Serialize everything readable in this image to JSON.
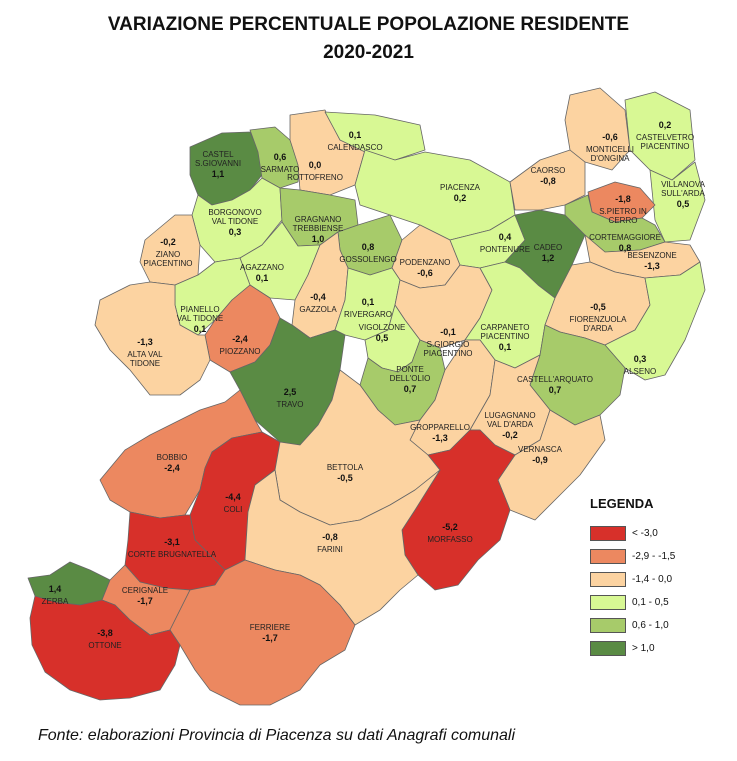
{
  "title_line1": "VARIAZIONE PERCENTUALE POPOLAZIONE RESIDENTE",
  "title_line2": "2020-2021",
  "source": "Fonte: elaborazioni Provincia di Piacenza su dati Anagrafi comunali",
  "colors": {
    "c1": "#d7302a",
    "c2": "#ec8860",
    "c3": "#fcd3a1",
    "c4": "#d8f894",
    "c5": "#a7cb6a",
    "c6": "#5a8b44"
  },
  "legend": {
    "title": "LEGENDA",
    "items": [
      {
        "label": "< -3,0",
        "cls": "c1"
      },
      {
        "label": "-2,9 - -1,5",
        "cls": "c2"
      },
      {
        "label": "-1,4 - 0,0",
        "cls": "c3"
      },
      {
        "label": "0,1 - 0,5",
        "cls": "c4"
      },
      {
        "label": "0,6 - 1,0",
        "cls": "c5"
      },
      {
        "label": "> 1,0",
        "cls": "c6"
      }
    ]
  },
  "comuni": [
    {
      "id": "castel-san-giovanni",
      "name": [
        "CASTEL",
        "S.GIOVANNI"
      ],
      "value": "1,1",
      "value_num": 1.1,
      "cls": "c6"
    },
    {
      "id": "sarmato",
      "name": [
        "SARMATO"
      ],
      "value": "0,6",
      "value_num": 0.6,
      "cls": "c5"
    },
    {
      "id": "rottofreno",
      "name": [
        "ROTTOFRENO"
      ],
      "value": "0,0",
      "value_num": 0.0,
      "cls": "c3"
    },
    {
      "id": "calendasco",
      "name": [
        "CALENDASCO"
      ],
      "value": "0,1",
      "value_num": 0.1,
      "cls": "c4"
    },
    {
      "id": "piacenza",
      "name": [
        "PIACENZA"
      ],
      "value": "0,2",
      "value_num": 0.2,
      "cls": "c4"
    },
    {
      "id": "caorso",
      "name": [
        "CAORSO"
      ],
      "value": "-0,8",
      "value_num": -0.8,
      "cls": "c3"
    },
    {
      "id": "monticelli",
      "name": [
        "MONTICELLI",
        "D'ONGINA"
      ],
      "value": "-0,6",
      "value_num": -0.6,
      "cls": "c3"
    },
    {
      "id": "castelvetro",
      "name": [
        "CASTELVETRO",
        "PIACENTINO"
      ],
      "value": "0,2",
      "value_num": 0.2,
      "cls": "c4"
    },
    {
      "id": "villanova",
      "name": [
        "VILLANOVA",
        "SULL'ARDA"
      ],
      "value": "0,5",
      "value_num": 0.5,
      "cls": "c4"
    },
    {
      "id": "san-pietro-in-cerro",
      "name": [
        "S.PIETRO IN",
        "CERRO"
      ],
      "value": "-1,8",
      "value_num": -1.8,
      "cls": "c2"
    },
    {
      "id": "borgonovo",
      "name": [
        "BORGONOVO",
        "VAL TIDONE"
      ],
      "value": "0,3",
      "value_num": 0.3,
      "cls": "c4"
    },
    {
      "id": "gragnano",
      "name": [
        "GRAGNANO",
        "TREBBIENSE"
      ],
      "value": "1,0",
      "value_num": 1.0,
      "cls": "c5"
    },
    {
      "id": "ziano",
      "name": [
        "ZIANO",
        "PIACENTINO"
      ],
      "value": "-0,2",
      "value_num": -0.2,
      "cls": "c3"
    },
    {
      "id": "gossolengo",
      "name": [
        "GOSSOLENGO"
      ],
      "value": "0,8",
      "value_num": 0.8,
      "cls": "c5"
    },
    {
      "id": "podenzano",
      "name": [
        "PODENZANO"
      ],
      "value": "-0,6",
      "value_num": -0.6,
      "cls": "c3"
    },
    {
      "id": "pontenure",
      "name": [
        "PONTENURE"
      ],
      "value": "0,4",
      "value_num": 0.4,
      "cls": "c4"
    },
    {
      "id": "cadeo",
      "name": [
        "CADEO"
      ],
      "value": "1,2",
      "value_num": 1.2,
      "cls": "c6"
    },
    {
      "id": "cortemaggiore",
      "name": [
        "CORTEMAGGIORE"
      ],
      "value": "0,8",
      "value_num": 0.8,
      "cls": "c5"
    },
    {
      "id": "besenzone",
      "name": [
        "BESENZONE"
      ],
      "value": "-1,3",
      "value_num": -1.3,
      "cls": "c3"
    },
    {
      "id": "agazzano",
      "name": [
        "AGAZZANO"
      ],
      "value": "0,1",
      "value_num": 0.1,
      "cls": "c4"
    },
    {
      "id": "gazzola",
      "name": [
        "GAZZOLA"
      ],
      "value": "-0,4",
      "value_num": -0.4,
      "cls": "c3"
    },
    {
      "id": "rivergaro",
      "name": [
        "RIVERGARO"
      ],
      "value": "0,1",
      "value_num": 0.1,
      "cls": "c4"
    },
    {
      "id": "san-giorgio",
      "name": [
        "S.GIORGIO",
        "PIACENTINO"
      ],
      "value": "-0,1",
      "value_num": -0.1,
      "cls": "c3"
    },
    {
      "id": "carpaneto",
      "name": [
        "CARPANETO",
        "PIACENTINO"
      ],
      "value": "0,1",
      "value_num": 0.1,
      "cls": "c4"
    },
    {
      "id": "fiorenzuola",
      "name": [
        "FIORENZUOLA",
        "D'ARDA"
      ],
      "value": "-0,5",
      "value_num": -0.5,
      "cls": "c3"
    },
    {
      "id": "alseno",
      "name": [
        "ALSENO"
      ],
      "value": "0,3",
      "value_num": 0.3,
      "cls": "c4"
    },
    {
      "id": "pianello",
      "name": [
        "PIANELLO",
        "VAL TIDONE"
      ],
      "value": "0,1",
      "value_num": 0.1,
      "cls": "c4"
    },
    {
      "id": "piozzano",
      "name": [
        "PIOZZANO"
      ],
      "value": "-2,4",
      "value_num": -2.4,
      "cls": "c2"
    },
    {
      "id": "alta-val-tidone",
      "name": [
        "ALTA VAL",
        "TIDONE"
      ],
      "value": "-1,3",
      "value_num": -1.3,
      "cls": "c3"
    },
    {
      "id": "vigolzone",
      "name": [
        "VIGOLZONE"
      ],
      "value": "0,5",
      "value_num": 0.5,
      "cls": "c4"
    },
    {
      "id": "ponte-dell-olio",
      "name": [
        "PONTE",
        "DELL'OLIO"
      ],
      "value": "0,7",
      "value_num": 0.7,
      "cls": "c5"
    },
    {
      "id": "castell-arquato",
      "name": [
        "CASTELL'ARQUATO"
      ],
      "value": "0,7",
      "value_num": 0.7,
      "cls": "c5"
    },
    {
      "id": "travo",
      "name": [
        "TRAVO"
      ],
      "value": "2,5",
      "value_num": 2.5,
      "cls": "c6"
    },
    {
      "id": "gropparello",
      "name": [
        "GROPPARELLO"
      ],
      "value": "-1,3",
      "value_num": -1.3,
      "cls": "c3"
    },
    {
      "id": "lugagnano",
      "name": [
        "LUGAGNANO",
        "VAL D'ARDA"
      ],
      "value": "-0,2",
      "value_num": -0.2,
      "cls": "c3"
    },
    {
      "id": "vernasca",
      "name": [
        "VERNASCA"
      ],
      "value": "-0,9",
      "value_num": -0.9,
      "cls": "c3"
    },
    {
      "id": "bobbio",
      "name": [
        "BOBBIO"
      ],
      "value": "-2,4",
      "value_num": -2.4,
      "cls": "c2"
    },
    {
      "id": "coli",
      "name": [
        "COLI"
      ],
      "value": "-4,4",
      "value_num": -4.4,
      "cls": "c1"
    },
    {
      "id": "bettola",
      "name": [
        "BETTOLA"
      ],
      "value": "-0,5",
      "value_num": -0.5,
      "cls": "c3"
    },
    {
      "id": "morfasso",
      "name": [
        "MORFASSO"
      ],
      "value": "-5,2",
      "value_num": -5.2,
      "cls": "c1"
    },
    {
      "id": "corte-brugnatella",
      "name": [
        "CORTE BRUGNATELLA"
      ],
      "value": "-3,1",
      "value_num": -3.1,
      "cls": "c1"
    },
    {
      "id": "farini",
      "name": [
        "FARINI"
      ],
      "value": "-0,8",
      "value_num": -0.8,
      "cls": "c3"
    },
    {
      "id": "zerba",
      "name": [
        "ZERBA"
      ],
      "value": "1,4",
      "value_num": 1.4,
      "cls": "c6"
    },
    {
      "id": "cerignale",
      "name": [
        "CERIGNALE"
      ],
      "value": "-1,7",
      "value_num": -1.7,
      "cls": "c2"
    },
    {
      "id": "ferriere",
      "name": [
        "FERRIERE"
      ],
      "value": "-1,7",
      "value_num": -1.7,
      "cls": "c2"
    },
    {
      "id": "ottone",
      "name": [
        "OTTONE"
      ],
      "value": "-3,8",
      "value_num": -3.8,
      "cls": "c1"
    }
  ]
}
